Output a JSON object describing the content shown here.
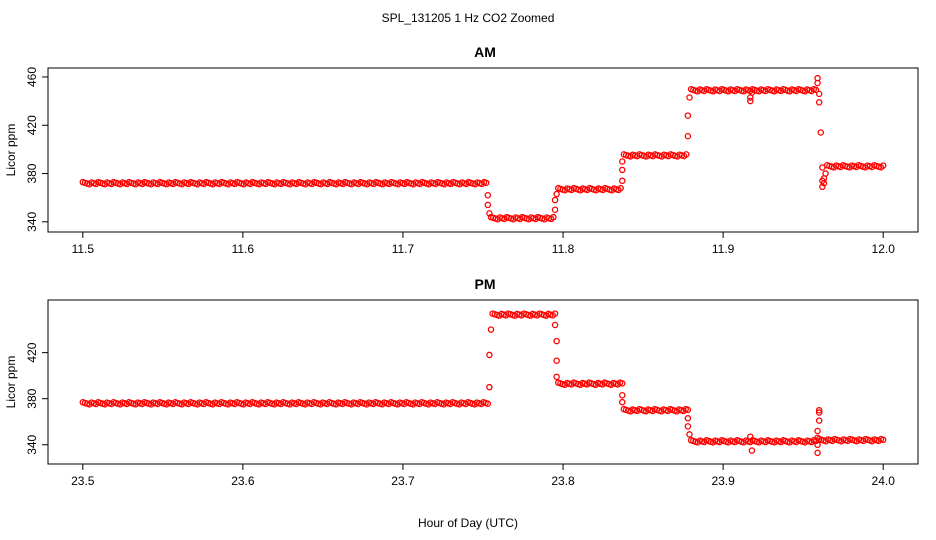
{
  "title": "SPL_131205  1 Hz CO2 Zoomed",
  "xlabel": "Hour of Day (UTC)",
  "point_color": "#ff0000",
  "chart_data": [
    {
      "type": "scatter",
      "title": "AM",
      "xlabel": "",
      "ylabel": "Licor ppm",
      "xlim": [
        11.5,
        12.0
      ],
      "ylim": [
        337,
        462
      ],
      "xticks": [
        11.5,
        11.6,
        11.7,
        11.8,
        11.9,
        12.0
      ],
      "xtick_labels": [
        "11.5",
        "11.6",
        "11.7",
        "11.8",
        "11.9",
        "12.0"
      ],
      "yticks": [
        340,
        380,
        420,
        460
      ],
      "ytick_labels": [
        "340",
        "380",
        "420",
        "460"
      ],
      "marker": "open-circle",
      "color": "#ff0000",
      "segments": [
        {
          "x_start": 11.5,
          "x_end": 11.752,
          "y": 372
        },
        {
          "x_start": 11.755,
          "x_end": 11.794,
          "y": 343
        },
        {
          "x_start": 11.797,
          "x_end": 11.836,
          "y": 367
        },
        {
          "x_start": 11.838,
          "x_end": 11.877,
          "y": 395
        },
        {
          "x_start": 11.88,
          "x_end": 11.958,
          "y": 449
        },
        {
          "x_start": 11.965,
          "x_end": 12.0,
          "y": 386
        }
      ],
      "points": [
        {
          "x": 11.753,
          "y": 362
        },
        {
          "x": 11.753,
          "y": 354
        },
        {
          "x": 11.754,
          "y": 347
        },
        {
          "x": 11.795,
          "y": 350
        },
        {
          "x": 11.795,
          "y": 358
        },
        {
          "x": 11.796,
          "y": 363
        },
        {
          "x": 11.837,
          "y": 374
        },
        {
          "x": 11.837,
          "y": 383
        },
        {
          "x": 11.837,
          "y": 390
        },
        {
          "x": 11.878,
          "y": 411
        },
        {
          "x": 11.878,
          "y": 428
        },
        {
          "x": 11.879,
          "y": 443
        },
        {
          "x": 11.917,
          "y": 440
        },
        {
          "x": 11.917,
          "y": 443
        },
        {
          "x": 11.918,
          "y": 447
        },
        {
          "x": 11.959,
          "y": 459
        },
        {
          "x": 11.959,
          "y": 455
        },
        {
          "x": 11.96,
          "y": 446
        },
        {
          "x": 11.96,
          "y": 439
        },
        {
          "x": 11.961,
          "y": 414
        },
        {
          "x": 11.962,
          "y": 385
        },
        {
          "x": 11.962,
          "y": 374
        },
        {
          "x": 11.962,
          "y": 369
        },
        {
          "x": 11.963,
          "y": 372
        },
        {
          "x": 11.963,
          "y": 376
        },
        {
          "x": 11.964,
          "y": 380
        }
      ]
    },
    {
      "type": "scatter",
      "title": "PM",
      "xlabel": "",
      "ylabel": "Licor ppm",
      "xlim": [
        23.5,
        24.0
      ],
      "ylim": [
        329,
        460
      ],
      "xticks": [
        23.5,
        23.6,
        23.7,
        23.8,
        23.9,
        24.0
      ],
      "xtick_labels": [
        "23.5",
        "23.6",
        "23.7",
        "23.8",
        "23.9",
        "24.0"
      ],
      "yticks": [
        340,
        380,
        420
      ],
      "ytick_labels": [
        "340",
        "380",
        "420"
      ],
      "marker": "open-circle",
      "color": "#ff0000",
      "segments": [
        {
          "x_start": 23.5,
          "x_end": 23.753,
          "y": 376
        },
        {
          "x_start": 23.756,
          "x_end": 23.795,
          "y": 453
        },
        {
          "x_start": 23.797,
          "x_end": 23.837,
          "y": 393
        },
        {
          "x_start": 23.838,
          "x_end": 23.878,
          "y": 370
        },
        {
          "x_start": 23.88,
          "x_end": 23.958,
          "y": 343
        },
        {
          "x_start": 23.96,
          "x_end": 24.0,
          "y": 344
        }
      ],
      "points": [
        {
          "x": 23.754,
          "y": 390
        },
        {
          "x": 23.754,
          "y": 418
        },
        {
          "x": 23.755,
          "y": 440
        },
        {
          "x": 23.795,
          "y": 444
        },
        {
          "x": 23.796,
          "y": 430
        },
        {
          "x": 23.796,
          "y": 413
        },
        {
          "x": 23.796,
          "y": 399
        },
        {
          "x": 23.837,
          "y": 383
        },
        {
          "x": 23.837,
          "y": 377
        },
        {
          "x": 23.878,
          "y": 363
        },
        {
          "x": 23.878,
          "y": 356
        },
        {
          "x": 23.879,
          "y": 349
        },
        {
          "x": 23.917,
          "y": 347
        },
        {
          "x": 23.918,
          "y": 335
        },
        {
          "x": 23.959,
          "y": 333
        },
        {
          "x": 23.959,
          "y": 340
        },
        {
          "x": 23.959,
          "y": 346
        },
        {
          "x": 23.959,
          "y": 352
        },
        {
          "x": 23.96,
          "y": 361
        },
        {
          "x": 23.96,
          "y": 368
        },
        {
          "x": 23.96,
          "y": 370
        }
      ]
    }
  ]
}
